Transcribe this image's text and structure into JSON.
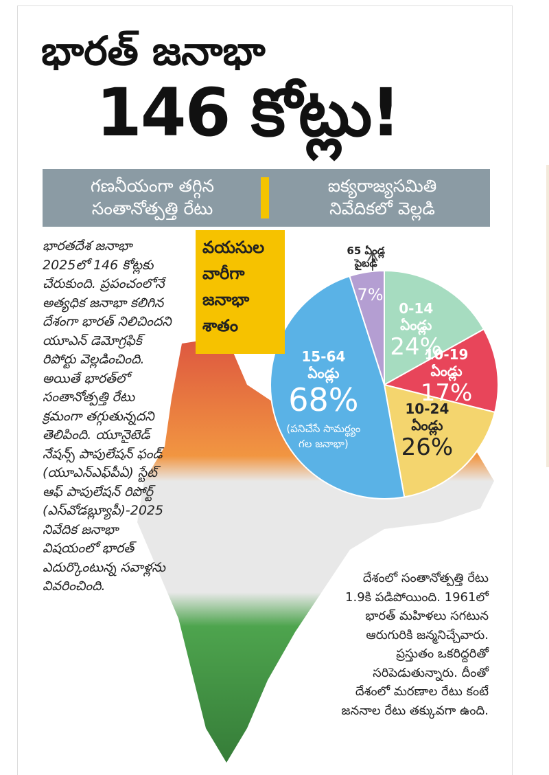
{
  "header": {
    "title_line1": "భారత్ జనాభా",
    "title_line2": "146 కోట్లు!"
  },
  "banner": {
    "left": [
      "గణనీయంగా తగ్గిన",
      "సంతానోత్పత్తి రేటు"
    ],
    "right": [
      "ఐక్యరాజ్యసమితి",
      "నివేదికలో వెల్లడి"
    ]
  },
  "body": {
    "left": "భారతదేశ జనాభా 2025లో 146 కోట్లకు చేరుకుంది. ప్రపంచంలోనే అత్యధిక జనాభా కలిగిన దేశంగా భారత్ నిలిచిందని యూఎన్ డెమోగ్రఫిక్ రిపోర్టు వెల్లడించింది. అయితే భారత్‌లో సంతానోత్పత్తి రేటు క్రమంగా తగ్గుతున్నదని తెలిపింది. యూనైటెడ్ నేషన్స్ పాపులేషన్ ఫండ్ (యూఎన్‌ఎఫ్‌పీఏ) స్టేట్ ఆఫ్ పాపులేషన్ రిపోర్ట్ (ఎస్‌వోడబ్ల్యూపీ)-2025 నివేదిక జనాభా విషయంలో భారత్ ఎదుర్కొంటున్న సవాళ్లను వివరించింది.",
    "right": "దేశంలో సంతానోత్పత్తి రేటు 1.9కి పడిపోయింది. 1961లో భారత్ మహిళలు సగటున ఆరుగురికి జన్మనిచ్చేవారు. ప్రస్తుతం ఒకరిద్దరితో సరిపెడుతున్నారు. దీంతో దేశంలో మరణాల రేటు కంటే జననాల రేటు తక్కువగా ఉంది."
  },
  "chart_data": {
    "type": "pie",
    "title": "వయసుల వారీగా జనాభా శాతం",
    "categories": [
      "0-14 ఏండ్లు",
      "10-19 ఏండ్లు",
      "10-24 ఏండ్లు",
      "15-64 ఏండ్లు",
      "65 ఏండ్ల పైబడి"
    ],
    "values": [
      24,
      17,
      26,
      68,
      7
    ],
    "value_labels": [
      "24%",
      "17%",
      "26%",
      "68%",
      "7%"
    ],
    "colors": [
      "#a6dcc0",
      "#e8455a",
      "#f4d56e",
      "#5ab2e6",
      "#b49ed2"
    ],
    "annotation": "(పనిచేసే సామర్థ్యం గల జనాభా)"
  }
}
